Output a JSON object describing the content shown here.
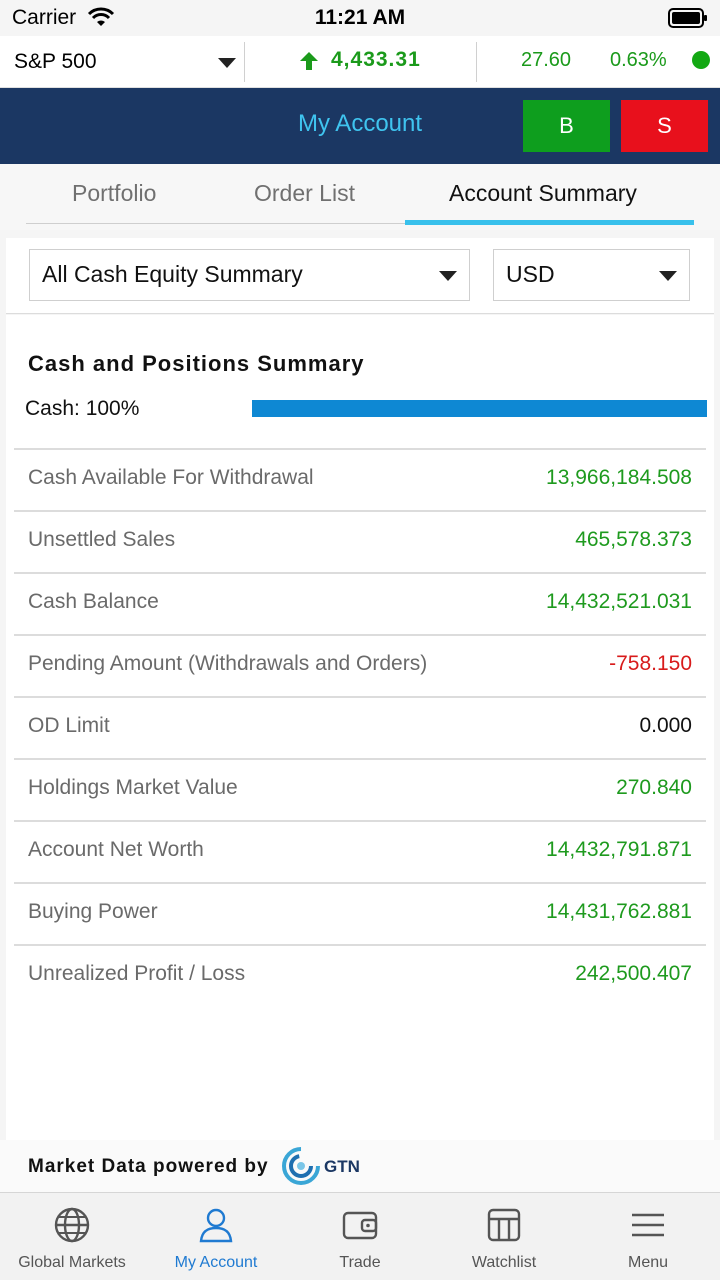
{
  "status_bar": {
    "carrier": "Carrier",
    "time": "11:21 AM"
  },
  "ticker": {
    "index": "S&P 500",
    "value": "4,433.31",
    "change": "27.60",
    "change_pct": "0.63%",
    "market_status_color": "#13a813"
  },
  "header": {
    "title": "My Account",
    "buy_label": "B",
    "sell_label": "S"
  },
  "tabs": [
    {
      "label": "Portfolio"
    },
    {
      "label": "Order List"
    },
    {
      "label": "Account Summary"
    }
  ],
  "filters": {
    "summary_type": "All Cash Equity Summary",
    "currency": "USD"
  },
  "summary": {
    "title": "Cash and Positions Summary",
    "cash_label": "Cash: 100%",
    "cash_fraction": 1.0,
    "rows": [
      {
        "label": "Cash Available For Withdrawal",
        "value": "13,966,184.508",
        "tone": "pos"
      },
      {
        "label": "Unsettled Sales",
        "value": "465,578.373",
        "tone": "pos"
      },
      {
        "label": "Cash Balance",
        "value": "14,432,521.031",
        "tone": "pos"
      },
      {
        "label": "Pending Amount (Withdrawals and Orders)",
        "value": "-758.150",
        "tone": "neg"
      },
      {
        "label": "OD Limit",
        "value": "0.000",
        "tone": "neu"
      },
      {
        "label": "Holdings Market Value",
        "value": "270.840",
        "tone": "pos"
      },
      {
        "label": "Account Net Worth",
        "value": "14,432,791.871",
        "tone": "pos"
      },
      {
        "label": "Buying Power",
        "value": "14,431,762.881",
        "tone": "pos"
      },
      {
        "label": "Unrealized Profit / Loss",
        "value": "242,500.407",
        "tone": "pos"
      }
    ]
  },
  "footer": {
    "powered_by": "Market Data powered by",
    "logo_text": "GTN"
  },
  "bottom_nav": [
    {
      "label": "Global Markets",
      "icon": "globe-icon"
    },
    {
      "label": "My Account",
      "icon": "user-icon",
      "active": true
    },
    {
      "label": "Trade",
      "icon": "wallet-icon"
    },
    {
      "label": "Watchlist",
      "icon": "watchlist-icon"
    },
    {
      "label": "Menu",
      "icon": "menu-icon"
    }
  ],
  "colors": {
    "positive": "#1e9a1e",
    "negative": "#d81b1b",
    "header_bg": "#1b3763",
    "accent": "#39c1ec"
  }
}
